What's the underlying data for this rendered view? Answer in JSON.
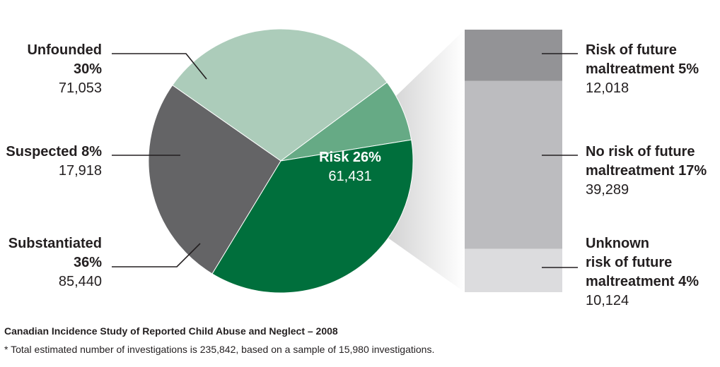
{
  "chart_data": {
    "type": "pie",
    "slices": [
      {
        "label": "Unfounded",
        "percent": "30%",
        "value": 71053,
        "value_text": "71,053",
        "color": "#acccba"
      },
      {
        "label": "Suspected",
        "percent": "8%",
        "value": 17918,
        "value_text": "17,918",
        "color": "#66aa85"
      },
      {
        "label": "Substantiated",
        "percent": "36%",
        "value": 85440,
        "value_text": "85,440",
        "color": "#006f3c"
      },
      {
        "label": "Risk",
        "percent": "26%",
        "value": 61431,
        "value_text": "61,431",
        "color": "#646466"
      }
    ],
    "breakdown": {
      "of": "Risk",
      "segments": [
        {
          "label": "Risk of future maltreatment",
          "percent": "5%",
          "value": 12018,
          "value_text": "12,018",
          "color": "#939396"
        },
        {
          "label": "No risk of future maltreatment",
          "percent": "17%",
          "value": 39289,
          "value_text": "39,289",
          "color": "#bcbcbf"
        },
        {
          "label": "Unknown risk of future maltreatment",
          "percent": "4%",
          "value": 10124,
          "value_text": "10,124",
          "color": "#dcdcde"
        }
      ]
    }
  },
  "labels": {
    "unfounded": {
      "line1": "Unfounded",
      "line2": "30%",
      "value": "71,053"
    },
    "suspected": {
      "line1": "Suspected 8%",
      "value": "17,918"
    },
    "substantiated": {
      "line1": "Substantiated",
      "line2": "36%",
      "value": "85,440"
    },
    "risk": {
      "line1": "Risk 26%",
      "value": "61,431"
    },
    "risk_future": {
      "line1": "Risk of future",
      "line2": "maltreatment 5%",
      "value": "12,018"
    },
    "no_risk": {
      "line1": "No risk of future",
      "line2": "maltreatment 17%",
      "value": "39,289"
    },
    "unknown": {
      "line1": "Unknown",
      "line2": "risk of future",
      "line3": "maltreatment 4%",
      "value": "10,124"
    }
  },
  "footer": {
    "title": "Canadian Incidence Study of Reported Child Abuse and Neglect – 2008",
    "note": "*  Total estimated number of investigations is 235,842, based on a sample of 15,980 investigations."
  }
}
